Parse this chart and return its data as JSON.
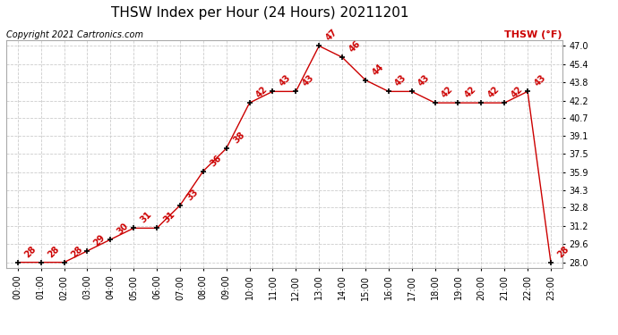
{
  "title": "THSW Index per Hour (24 Hours) 20211201",
  "copyright": "Copyright 2021 Cartronics.com",
  "legend_label": "THSW (°F)",
  "hours": [
    0,
    1,
    2,
    3,
    4,
    5,
    6,
    7,
    8,
    9,
    10,
    11,
    12,
    13,
    14,
    15,
    16,
    17,
    18,
    19,
    20,
    21,
    22,
    23
  ],
  "values": [
    28,
    28,
    28,
    29,
    30,
    31,
    31,
    33,
    36,
    38,
    42,
    43,
    43,
    47,
    46,
    44,
    43,
    43,
    42,
    42,
    42,
    42,
    43,
    28
  ],
  "x_labels": [
    "00:00",
    "01:00",
    "02:00",
    "03:00",
    "04:00",
    "05:00",
    "06:00",
    "07:00",
    "08:00",
    "09:00",
    "10:00",
    "11:00",
    "12:00",
    "13:00",
    "14:00",
    "15:00",
    "16:00",
    "17:00",
    "18:00",
    "19:00",
    "20:00",
    "21:00",
    "22:00",
    "23:00"
  ],
  "y_ticks": [
    28.0,
    29.6,
    31.2,
    32.8,
    34.3,
    35.9,
    37.5,
    39.1,
    40.7,
    42.2,
    43.8,
    45.4,
    47.0
  ],
  "ylim": [
    27.5,
    47.5
  ],
  "xlim": [
    -0.5,
    23.5
  ],
  "line_color": "#cc0000",
  "marker_color": "#000000",
  "label_color": "#cc0000",
  "title_color": "#000000",
  "copyright_color": "#000000",
  "background_color": "#ffffff",
  "grid_color": "#cccccc",
  "title_fontsize": 11,
  "copyright_fontsize": 7,
  "label_fontsize": 7,
  "axis_label_fontsize": 7,
  "legend_color": "#cc0000",
  "legend_fontsize": 8,
  "annotation_rotation": 45
}
